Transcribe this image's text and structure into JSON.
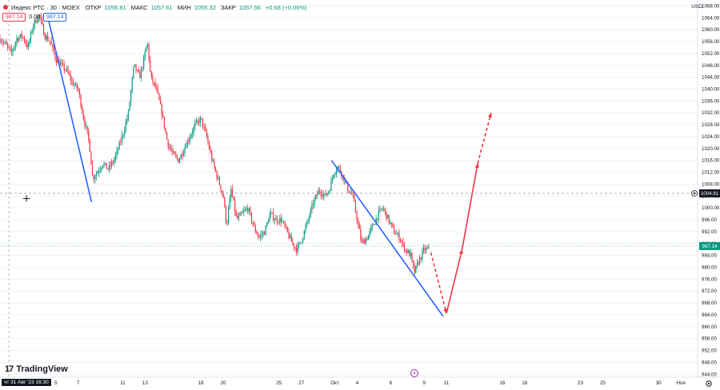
{
  "header": {
    "symbol": "Индекс РТС · 30 · MOEX",
    "open_label": "ОТКР",
    "open": "1056.81",
    "high_label": "МАКС",
    "high": "1057.61",
    "low_label": "МИН",
    "low": "1055.32",
    "close_label": "ЗАКР",
    "close": "1057.56",
    "change": "+0.68 (+0.06%)"
  },
  "badges": {
    "bid": "987.14",
    "spread": "0.00",
    "ask": "987.14"
  },
  "currency": "USD",
  "logo_text": "TradingView",
  "crosshair_time_label": "чт 31 Авг '23  16:30",
  "crosshair_price_label": "1004.91",
  "last_price_label": "987.14",
  "colors": {
    "up": "#089981",
    "down": "#f23645",
    "trendline": "#2962ff",
    "forecast": "#f23645",
    "background": "#ffffff"
  },
  "icons": {
    "settings": "gear-icon",
    "event": "lightning-icon",
    "crosshair": "crosshair-icon"
  },
  "chart_data": {
    "type": "candlestick",
    "title": "Индекс РТС · 30 · MOEX",
    "interval": "30",
    "ylim": [
      943,
      1070
    ],
    "y_ticks": [
      944,
      948,
      952,
      956,
      960,
      964,
      968,
      972,
      976,
      980,
      984,
      988,
      992,
      996,
      1000,
      1004,
      1008,
      1012,
      1016,
      1020,
      1024,
      1028,
      1032,
      1036,
      1040,
      1044,
      1048,
      1052,
      1056,
      1060,
      1064,
      1068
    ],
    "x_ticks": [
      {
        "label": "5",
        "day": 5
      },
      {
        "label": "7",
        "day": 7
      },
      {
        "label": "11",
        "day": 11
      },
      {
        "label": "13",
        "day": 13
      },
      {
        "label": "18",
        "day": 18
      },
      {
        "label": "20",
        "day": 20
      },
      {
        "label": "25",
        "day": 25
      },
      {
        "label": "27",
        "day": 27
      },
      {
        "label": "Окт",
        "day": 30
      },
      {
        "label": "4",
        "day": 32
      },
      {
        "label": "6",
        "day": 35
      },
      {
        "label": "9",
        "day": 38
      },
      {
        "label": "11",
        "day": 40
      },
      {
        "label": "16",
        "day": 45
      },
      {
        "label": "18",
        "day": 47
      },
      {
        "label": "23",
        "day": 52
      },
      {
        "label": "25",
        "day": 54
      },
      {
        "label": "30",
        "day": 59
      },
      {
        "label": "Ноя",
        "day": 61
      }
    ],
    "price_path": [
      [
        0.0,
        1057
      ],
      [
        0.5,
        1055
      ],
      [
        1.0,
        1052
      ],
      [
        1.5,
        1057
      ],
      [
        2.0,
        1058
      ],
      [
        2.5,
        1054
      ],
      [
        3.0,
        1062
      ],
      [
        3.5,
        1065
      ],
      [
        4.0,
        1058
      ],
      [
        4.5,
        1056
      ],
      [
        5.0,
        1050
      ],
      [
        5.5,
        1048
      ],
      [
        6.0,
        1046
      ],
      [
        6.5,
        1042
      ],
      [
        7.0,
        1040
      ],
      [
        7.5,
        1030
      ],
      [
        8.0,
        1022
      ],
      [
        8.3,
        1010
      ],
      [
        8.7,
        1012
      ],
      [
        9.2,
        1015
      ],
      [
        9.7,
        1013
      ],
      [
        10.2,
        1016
      ],
      [
        10.6,
        1020
      ],
      [
        11.1,
        1026
      ],
      [
        11.5,
        1032
      ],
      [
        12.0,
        1048
      ],
      [
        12.5,
        1044
      ],
      [
        12.9,
        1050
      ],
      [
        13.2,
        1056
      ],
      [
        13.5,
        1044
      ],
      [
        14.0,
        1040
      ],
      [
        14.5,
        1032
      ],
      [
        15.0,
        1022
      ],
      [
        15.5,
        1018
      ],
      [
        16.0,
        1016
      ],
      [
        16.5,
        1020
      ],
      [
        17.0,
        1024
      ],
      [
        17.5,
        1028
      ],
      [
        18.0,
        1030
      ],
      [
        18.5,
        1024
      ],
      [
        19.0,
        1016
      ],
      [
        19.5,
        1010
      ],
      [
        20.0,
        1004
      ],
      [
        20.3,
        994
      ],
      [
        20.7,
        1006
      ],
      [
        21.2,
        996
      ],
      [
        21.7,
        998
      ],
      [
        22.2,
        1000
      ],
      [
        22.7,
        994
      ],
      [
        23.2,
        990
      ],
      [
        23.7,
        992
      ],
      [
        24.2,
        998
      ],
      [
        24.7,
        996
      ],
      [
        25.2,
        996
      ],
      [
        25.7,
        992
      ],
      [
        26.2,
        988
      ],
      [
        26.6,
        986
      ],
      [
        27.1,
        990
      ],
      [
        27.6,
        996
      ],
      [
        28.1,
        1002
      ],
      [
        28.6,
        1006
      ],
      [
        29.1,
        1004
      ],
      [
        29.5,
        1006
      ],
      [
        29.9,
        1012
      ],
      [
        30.3,
        1014
      ],
      [
        30.8,
        1010
      ],
      [
        31.2,
        1006
      ],
      [
        31.6,
        1004
      ],
      [
        32.0,
        996
      ],
      [
        32.4,
        988
      ],
      [
        32.9,
        990
      ],
      [
        33.4,
        994
      ],
      [
        33.9,
        998
      ],
      [
        34.3,
        1000
      ],
      [
        34.8,
        996
      ],
      [
        35.3,
        992
      ],
      [
        35.8,
        990
      ],
      [
        36.3,
        986
      ],
      [
        36.8,
        984
      ],
      [
        37.1,
        978
      ],
      [
        37.5,
        982
      ],
      [
        38.0,
        986
      ],
      [
        38.5,
        986
      ]
    ],
    "blue_lines": [
      {
        "from": [
          4.3,
          1064
        ],
        "to": [
          8.2,
          1002
        ]
      },
      {
        "from": [
          29.7,
          1016
        ],
        "to": [
          39.7,
          963.5
        ]
      }
    ],
    "forecast_path": [
      [
        38.6,
        985
      ],
      [
        40.0,
        964.5
      ],
      [
        41.4,
        986
      ],
      [
        42.8,
        1015
      ],
      [
        44.0,
        1032
      ]
    ],
    "crosshair": {
      "day": 0.8,
      "price": 1004.91
    },
    "last_price": 987.14
  }
}
